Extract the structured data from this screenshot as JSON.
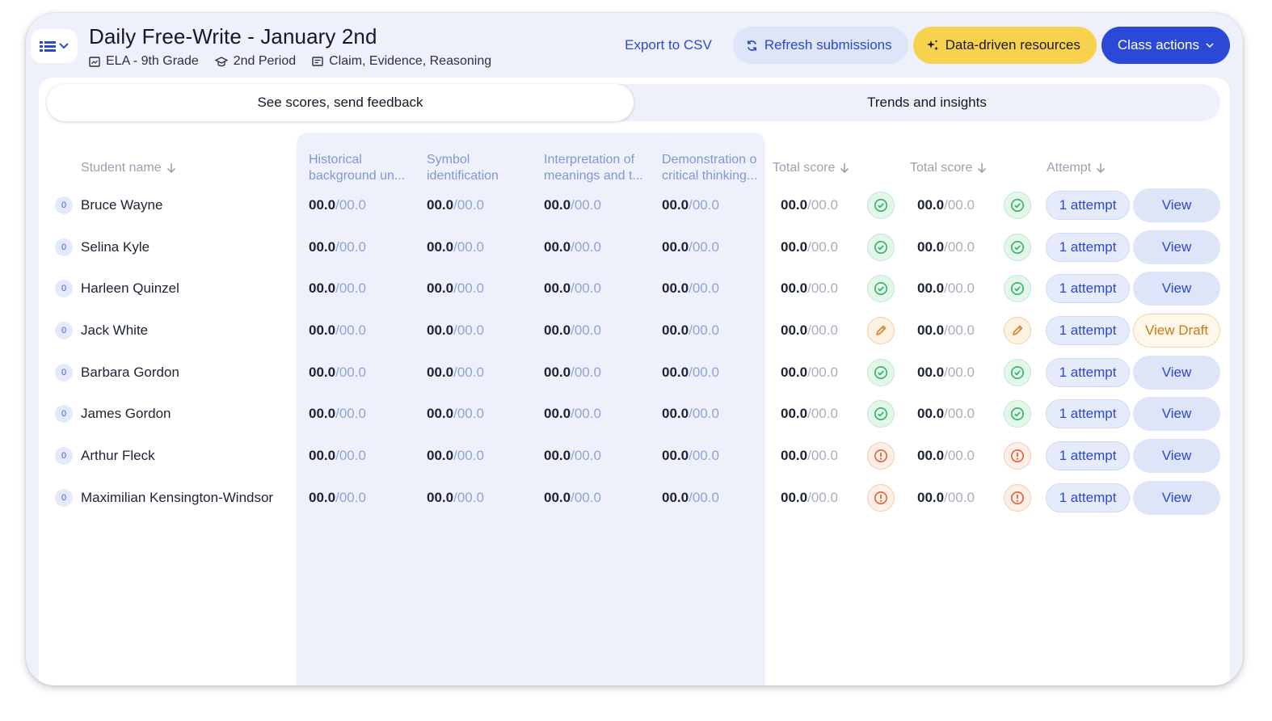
{
  "header": {
    "title": "Daily Free-Write - January 2nd",
    "meta": {
      "course": "ELA - 9th Grade",
      "period": "2nd Period",
      "rubric": "Claim, Evidence, Reasoning"
    },
    "actions": {
      "export": "Export to CSV",
      "refresh": "Refresh submissions",
      "data_driven": "Data-driven resources",
      "class_actions": "Class actions"
    }
  },
  "tabs": [
    {
      "label": "See scores, send feedback",
      "active": true
    },
    {
      "label": "Trends and insights",
      "active": false
    }
  ],
  "columns": {
    "student": "Student name",
    "criteria": [
      {
        "line1": "Historical",
        "line2": "background un..."
      },
      {
        "line1": "Symbol",
        "line2": "identification"
      },
      {
        "line1": "Interpretation of",
        "line2": "meanings and t..."
      },
      {
        "line1": "Demonstration o",
        "line2": "critical thinking..."
      }
    ],
    "total1": "Total score",
    "total2": "Total score",
    "attempt": "Attempt"
  },
  "colors": {
    "accent": "#2c48d6",
    "highlight": "#f8d14d",
    "ok": "#2fb166",
    "draft": "#d9822b",
    "warn": "#e0603a"
  },
  "students": [
    {
      "num": "0",
      "name": "Bruce Wayne",
      "scores": [
        [
          "00.0",
          "/00.0"
        ],
        [
          "00.0",
          "/00.0"
        ],
        [
          "00.0",
          "/00.0"
        ],
        [
          "00.0",
          "/00.0"
        ]
      ],
      "total1": [
        "00.0",
        "/00.0"
      ],
      "total2": [
        "00.0",
        "/00.0"
      ],
      "status": "ok",
      "attempt": "1 attempt",
      "action": "View"
    },
    {
      "num": "0",
      "name": "Selina Kyle",
      "scores": [
        [
          "00.0",
          "/00.0"
        ],
        [
          "00.0",
          "/00.0"
        ],
        [
          "00.0",
          "/00.0"
        ],
        [
          "00.0",
          "/00.0"
        ]
      ],
      "total1": [
        "00.0",
        "/00.0"
      ],
      "total2": [
        "00.0",
        "/00.0"
      ],
      "status": "ok",
      "attempt": "1 attempt",
      "action": "View"
    },
    {
      "num": "0",
      "name": "Harleen Quinzel",
      "scores": [
        [
          "00.0",
          "/00.0"
        ],
        [
          "00.0",
          "/00.0"
        ],
        [
          "00.0",
          "/00.0"
        ],
        [
          "00.0",
          "/00.0"
        ]
      ],
      "total1": [
        "00.0",
        "/00.0"
      ],
      "total2": [
        "00.0",
        "/00.0"
      ],
      "status": "ok",
      "attempt": "1 attempt",
      "action": "View"
    },
    {
      "num": "0",
      "name": "Jack White",
      "scores": [
        [
          "00.0",
          "/00.0"
        ],
        [
          "00.0",
          "/00.0"
        ],
        [
          "00.0",
          "/00.0"
        ],
        [
          "00.0",
          "/00.0"
        ]
      ],
      "total1": [
        "00.0",
        "/00.0"
      ],
      "total2": [
        "00.0",
        "/00.0"
      ],
      "status": "draft",
      "attempt": "1 attempt",
      "action": "View Draft"
    },
    {
      "num": "0",
      "name": "Barbara Gordon",
      "scores": [
        [
          "00.0",
          "/00.0"
        ],
        [
          "00.0",
          "/00.0"
        ],
        [
          "00.0",
          "/00.0"
        ],
        [
          "00.0",
          "/00.0"
        ]
      ],
      "total1": [
        "00.0",
        "/00.0"
      ],
      "total2": [
        "00.0",
        "/00.0"
      ],
      "status": "ok",
      "attempt": "1 attempt",
      "action": "View"
    },
    {
      "num": "0",
      "name": "James Gordon",
      "scores": [
        [
          "00.0",
          "/00.0"
        ],
        [
          "00.0",
          "/00.0"
        ],
        [
          "00.0",
          "/00.0"
        ],
        [
          "00.0",
          "/00.0"
        ]
      ],
      "total1": [
        "00.0",
        "/00.0"
      ],
      "total2": [
        "00.0",
        "/00.0"
      ],
      "status": "ok",
      "attempt": "1 attempt",
      "action": "View"
    },
    {
      "num": "0",
      "name": "Arthur Fleck",
      "scores": [
        [
          "00.0",
          "/00.0"
        ],
        [
          "00.0",
          "/00.0"
        ],
        [
          "00.0",
          "/00.0"
        ],
        [
          "00.0",
          "/00.0"
        ]
      ],
      "total1": [
        "00.0",
        "/00.0"
      ],
      "total2": [
        "00.0",
        "/00.0"
      ],
      "status": "warn",
      "attempt": "1 attempt",
      "action": "View"
    },
    {
      "num": "0",
      "name": "Maximilian Kensington-Windsor",
      "scores": [
        [
          "00.0",
          "/00.0"
        ],
        [
          "00.0",
          "/00.0"
        ],
        [
          "00.0",
          "/00.0"
        ],
        [
          "00.0",
          "/00.0"
        ]
      ],
      "total1": [
        "00.0",
        "/00.0"
      ],
      "total2": [
        "00.0",
        "/00.0"
      ],
      "status": "warn",
      "attempt": "1 attempt",
      "action": "View"
    }
  ]
}
